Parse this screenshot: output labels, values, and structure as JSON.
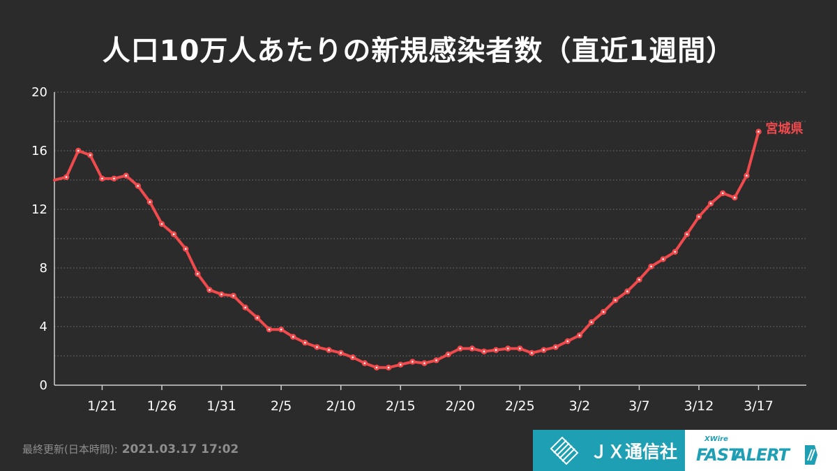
{
  "title": "人口10万人あたりの新規感染者数（直近1週間）",
  "footer": {
    "updated_label": "最終更新(日本時間):",
    "updated_value": "2021.03.17 17:02"
  },
  "logos": {
    "jx_name": "ＪＸ通信社",
    "fastalert_xwire": "XWire",
    "fastalert_fast": "FAST",
    "fastalert_alert": "ALERT"
  },
  "colors": {
    "background": "#2b2b2b",
    "series": "#f04a4d",
    "grid": "#777777",
    "jx_brand": "#1e9fb4"
  },
  "chart_data": {
    "type": "line",
    "title": "人口10万人あたりの新規感染者数（直近1週間）",
    "xlabel": "",
    "ylabel": "",
    "ylim": [
      0,
      20
    ],
    "yticks": [
      "0",
      "4",
      "8",
      "12",
      "16",
      "20"
    ],
    "x_tick_labels": [
      "1/21",
      "1/26",
      "1/31",
      "2/5",
      "2/10",
      "2/15",
      "2/20",
      "2/25",
      "3/2",
      "3/7",
      "3/12",
      "3/17"
    ],
    "x_tick_dates": [
      "2021-01-21",
      "2021-01-26",
      "2021-01-31",
      "2021-02-05",
      "2021-02-10",
      "2021-02-15",
      "2021-02-20",
      "2021-02-25",
      "2021-03-02",
      "2021-03-07",
      "2021-03-12",
      "2021-03-17"
    ],
    "x_start": "2021-01-17",
    "x_end": "2021-03-21",
    "grid": true,
    "series": [
      {
        "name": "宮城県",
        "color": "#f04a4d",
        "start_date": "2021-01-17",
        "values": [
          14.0,
          14.2,
          16.0,
          15.7,
          14.1,
          14.1,
          14.3,
          13.6,
          12.5,
          11.0,
          10.3,
          9.3,
          7.6,
          6.5,
          6.2,
          6.1,
          5.3,
          4.6,
          3.8,
          3.8,
          3.3,
          2.9,
          2.6,
          2.4,
          2.2,
          1.9,
          1.5,
          1.2,
          1.2,
          1.4,
          1.6,
          1.5,
          1.7,
          2.1,
          2.5,
          2.5,
          2.3,
          2.4,
          2.5,
          2.5,
          2.2,
          2.4,
          2.6,
          3.0,
          3.4,
          4.3,
          5.0,
          5.8,
          6.4,
          7.2,
          8.1,
          8.6,
          9.1,
          10.3,
          11.5,
          12.4,
          13.1,
          12.8,
          14.3,
          17.3
        ]
      }
    ]
  }
}
